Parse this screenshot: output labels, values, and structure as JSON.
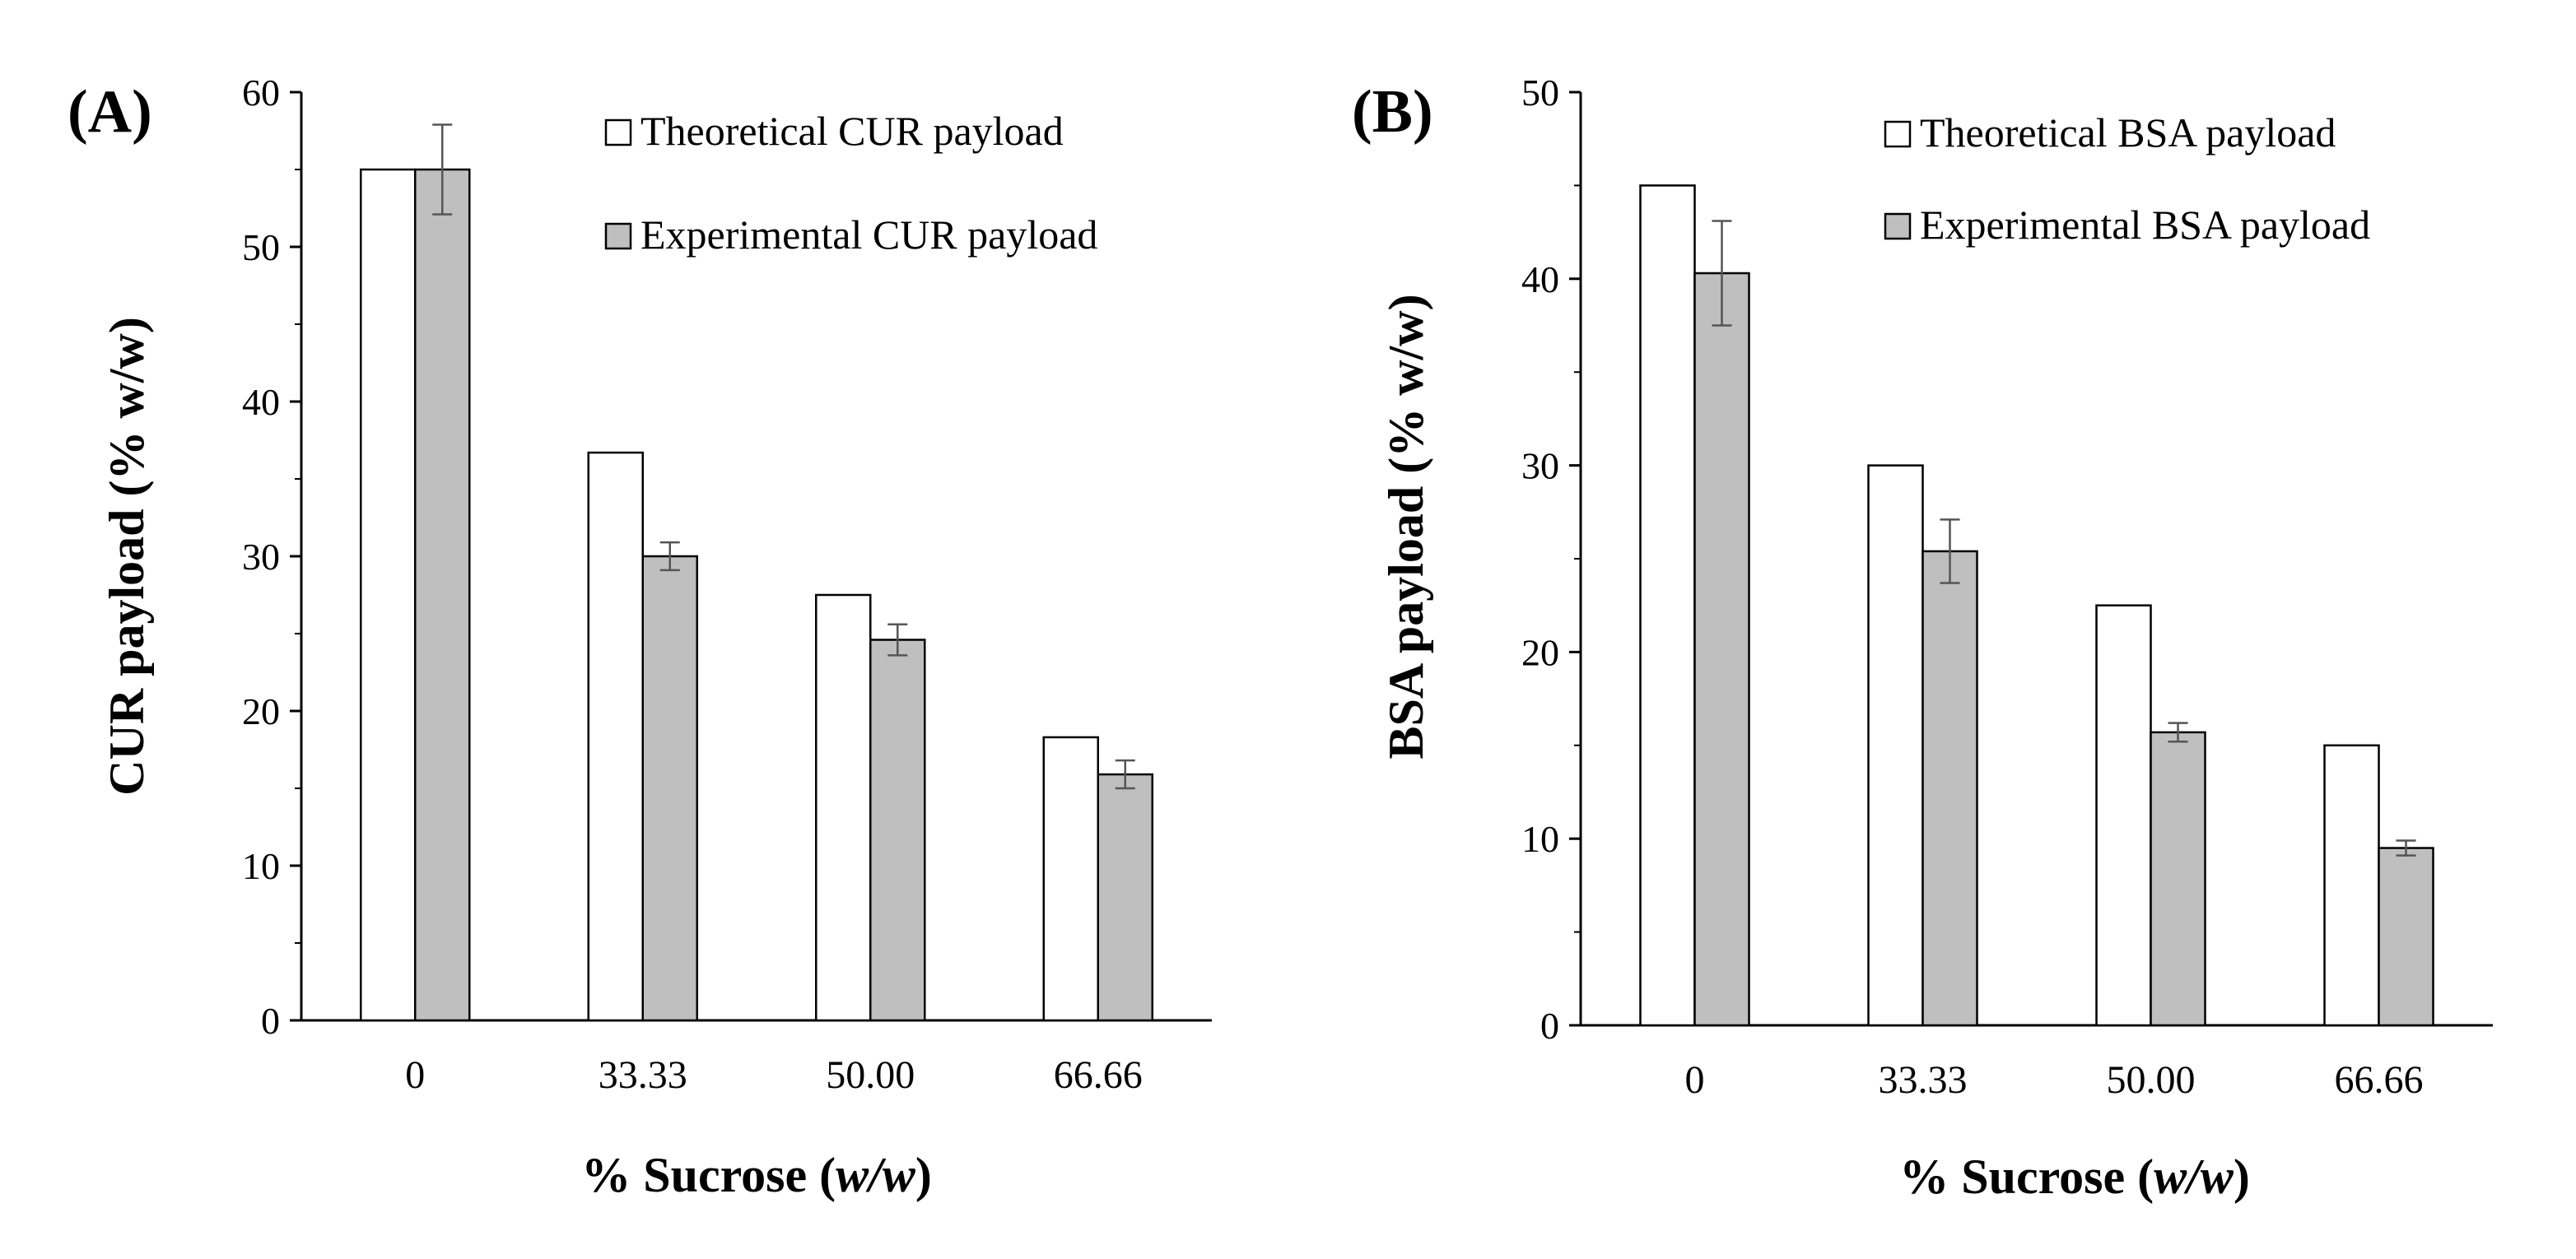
{
  "figure": {
    "panels": [
      "(A)",
      "(B)"
    ]
  },
  "chart_data": [
    {
      "type": "bar",
      "panel_label": "(A)",
      "title": "",
      "xlabel_prefix": "% Sucrose (",
      "xlabel_italic": "w/w",
      "xlabel_suffix": ")",
      "ylabel": "CUR payload (% w/w)",
      "categories": [
        "0",
        "33.33",
        "50.00",
        "66.66"
      ],
      "ylim": [
        0,
        60
      ],
      "yticks": [
        0,
        10,
        20,
        30,
        40,
        50,
        60
      ],
      "series": [
        {
          "name": "Theoretical CUR payload",
          "color": "#ffffff",
          "values": [
            55,
            36.7,
            27.5,
            18.3
          ],
          "errors": null
        },
        {
          "name": "Experimental CUR payload",
          "color": "#bfbfbf",
          "values": [
            55,
            30,
            24.6,
            15.9
          ],
          "errors": [
            2.9,
            0.9,
            1.0,
            0.9
          ]
        }
      ],
      "legend_position": "top-right",
      "grid": false
    },
    {
      "type": "bar",
      "panel_label": "(B)",
      "title": "",
      "xlabel_prefix": "% Sucrose (",
      "xlabel_italic": "w/w",
      "xlabel_suffix": ")",
      "ylabel": "BSA payload (% w/w)",
      "categories": [
        "0",
        "33.33",
        "50.00",
        "66.66"
      ],
      "ylim": [
        0,
        50
      ],
      "yticks": [
        0,
        10,
        20,
        30,
        40,
        50
      ],
      "series": [
        {
          "name": "Theoretical BSA payload",
          "color": "#ffffff",
          "values": [
            45,
            30,
            22.5,
            15
          ],
          "errors": null
        },
        {
          "name": "Experimental BSA payload",
          "color": "#bfbfbf",
          "values": [
            40.3,
            25.4,
            15.7,
            9.5
          ],
          "errors": [
            2.8,
            1.7,
            0.5,
            0.4
          ]
        }
      ],
      "legend_position": "top-right",
      "grid": false
    }
  ]
}
